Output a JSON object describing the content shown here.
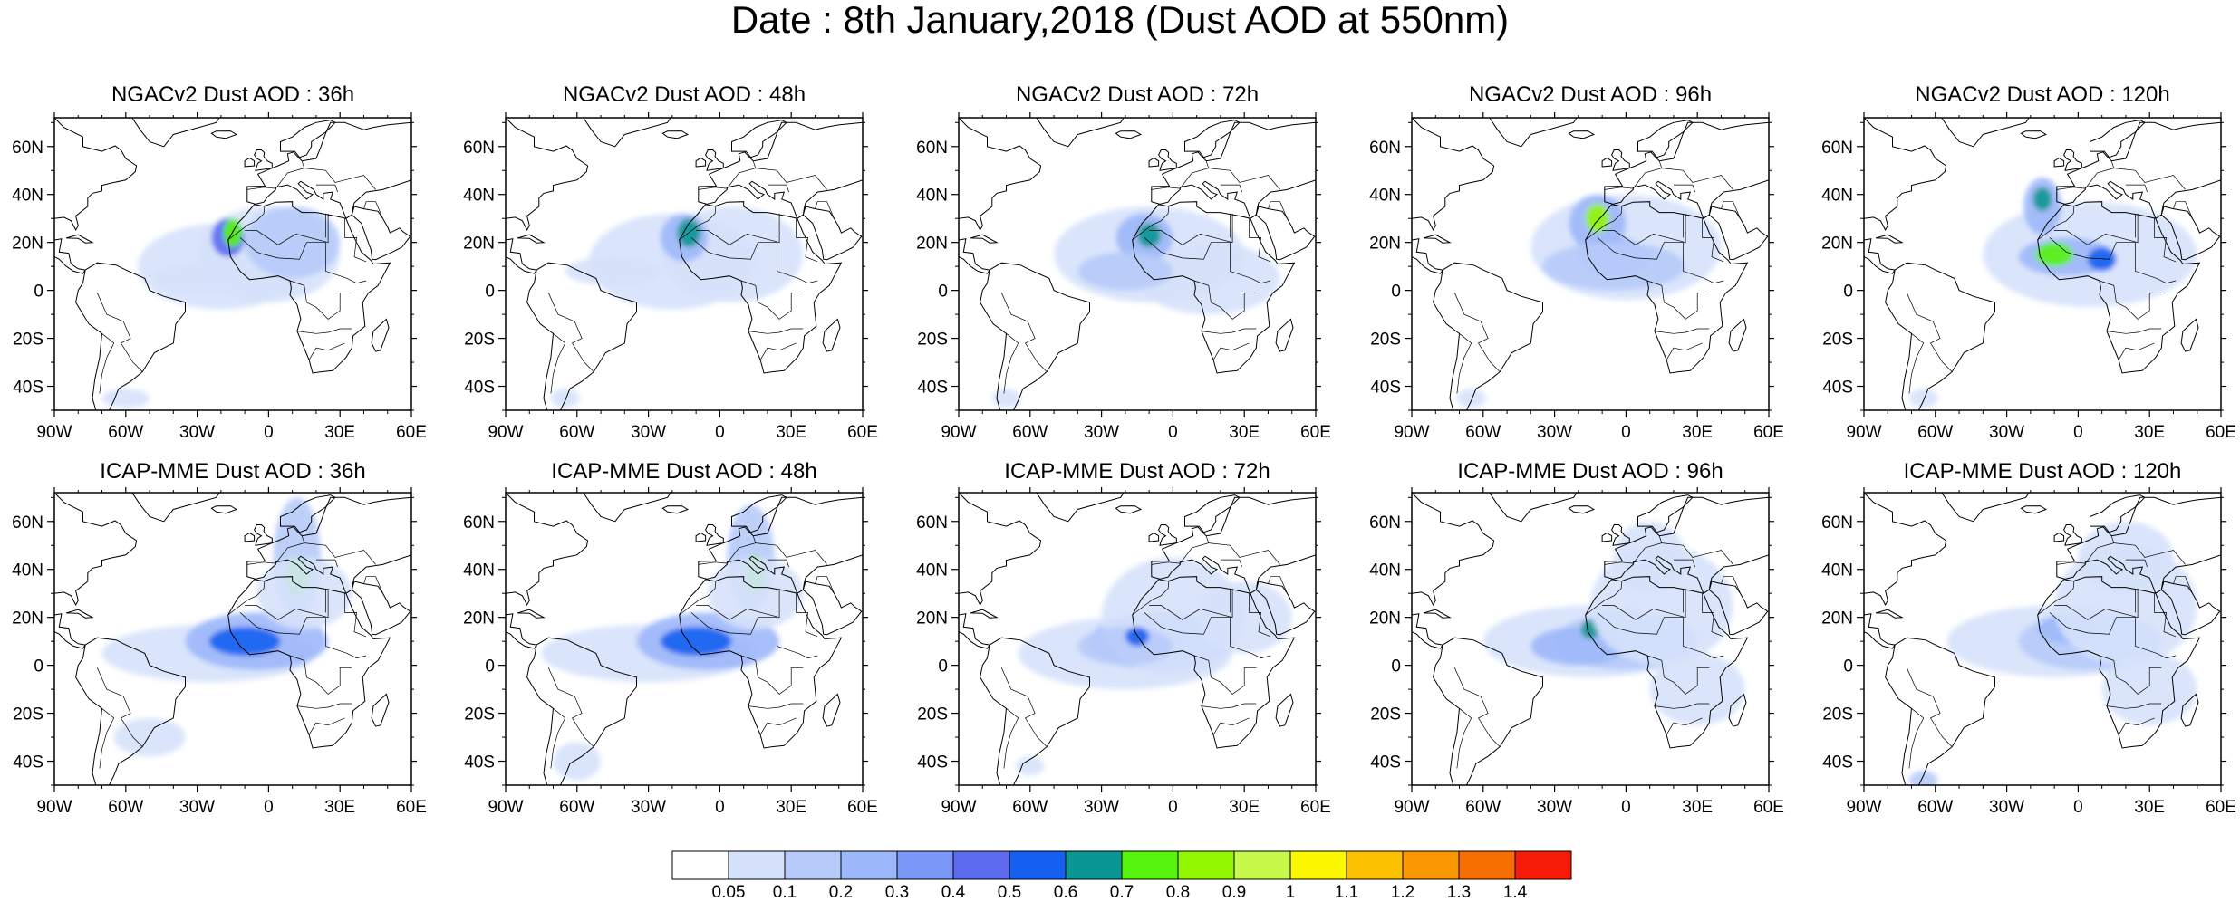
{
  "title": "Date : 8th January,2018 (Dust AOD at 550nm)",
  "axes": {
    "lon_ticks": [
      "90W",
      "60W",
      "30W",
      "0",
      "30E",
      "60E"
    ],
    "lat_ticks": [
      "60N",
      "40N",
      "20N",
      "0",
      "20S",
      "40S"
    ],
    "lon_range": [
      -90,
      60
    ],
    "lat_range": [
      -50,
      72
    ]
  },
  "panels": [
    {
      "title": "NGACv2 Dust AOD : 36h"
    },
    {
      "title": "NGACv2 Dust AOD : 48h"
    },
    {
      "title": "NGACv2 Dust AOD : 72h"
    },
    {
      "title": "NGACv2 Dust AOD : 96h"
    },
    {
      "title": "NGACv2 Dust AOD : 120h"
    },
    {
      "title": "ICAP-MME Dust AOD : 36h"
    },
    {
      "title": "ICAP-MME Dust AOD : 48h"
    },
    {
      "title": "ICAP-MME Dust AOD : 72h"
    },
    {
      "title": "ICAP-MME Dust AOD : 96h"
    },
    {
      "title": "ICAP-MME Dust AOD : 120h"
    }
  ],
  "colorbar": {
    "labels": [
      "0.05",
      "0.1",
      "0.2",
      "0.3",
      "0.4",
      "0.5",
      "0.6",
      "0.7",
      "0.8",
      "0.9",
      "1",
      "1.1",
      "1.2",
      "1.3",
      "1.4"
    ],
    "colors": [
      "#ffffff",
      "#d6e2fb",
      "#b7cbfa",
      "#9db8fa",
      "#7c98f7",
      "#5c6bef",
      "#1560f0",
      "#0a9693",
      "#57f40d",
      "#92f700",
      "#c6f94a",
      "#fbf700",
      "#fbc000",
      "#fb9700",
      "#f76f00",
      "#f71c08"
    ]
  }
}
